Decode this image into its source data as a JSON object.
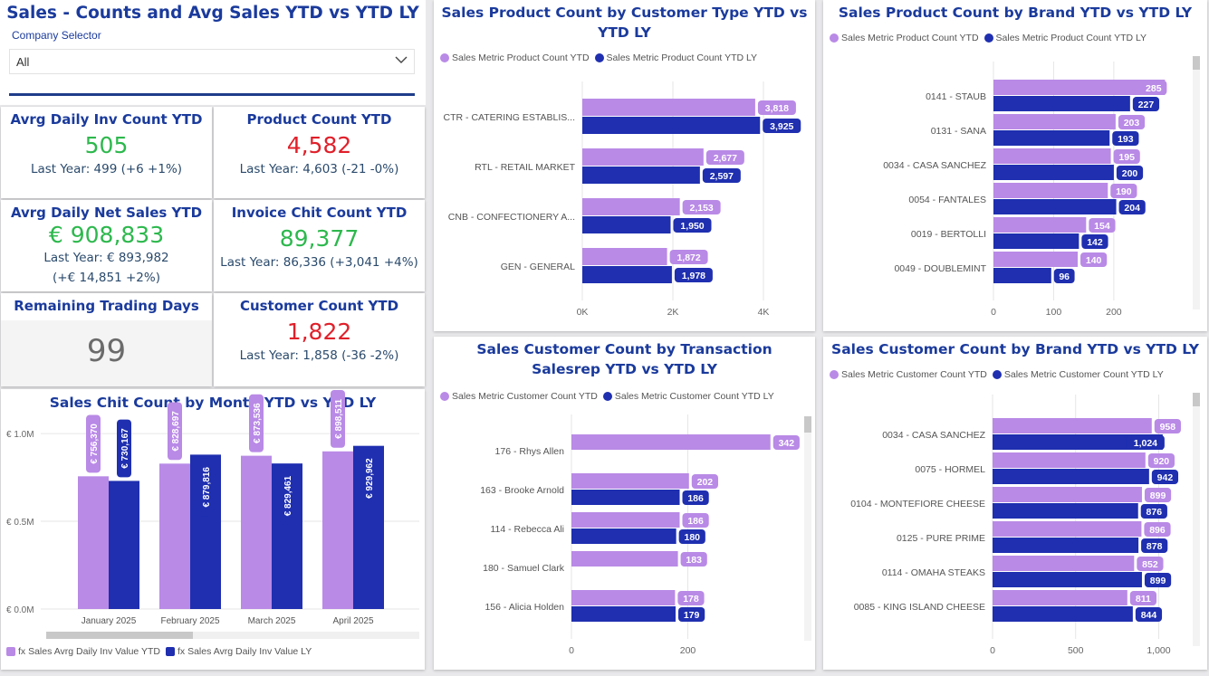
{
  "header": {
    "title": "Sales - Counts and Avg Sales YTD vs YTD LY",
    "selector_label": "Company Selector",
    "selector_value": "All"
  },
  "kpis": {
    "inv_count": {
      "title": "Avrg Daily Inv Count YTD",
      "value": "505",
      "sub": "Last Year: 499 (+6 +1%)"
    },
    "product_count": {
      "title": "Product Count YTD",
      "value": "4,582",
      "sub": "Last Year: 4,603 (-21 -0%)"
    },
    "net_sales": {
      "title": "Avrg Daily Net Sales YTD",
      "value": "€ 908,833",
      "sub": "Last Year: € 893,982",
      "sub2": "(+€ 14,851 +2%)"
    },
    "invoice_chit": {
      "title": "Invoice Chit Count YTD",
      "value": "89,377",
      "sub": "Last Year: 86,336 (+3,041 +4%)"
    },
    "remaining_days": {
      "title": "Remaining Trading Days",
      "value": "99"
    },
    "customer_count": {
      "title": "Customer Count YTD",
      "value": "1,822",
      "sub": "Last Year: 1,858 (-36 -2%)"
    }
  },
  "colors": {
    "ytd": "#b98ae6",
    "ly": "#1f2fb0",
    "green": "#2db84d",
    "red": "#e0202a",
    "title": "#1a3a9c"
  },
  "chart_data": [
    {
      "id": "month",
      "type": "bar",
      "title": "Sales Chit Count by Month YTD vs YTD LY",
      "categories": [
        "January 2025",
        "February 2025",
        "March 2025",
        "April 2025"
      ],
      "series": [
        {
          "name": "fx Sales Avrg Daily Inv Value YTD",
          "values": [
            756370,
            828697,
            873536,
            898511
          ],
          "labels": [
            "€ 756,370",
            "€ 828,697",
            "€ 873,536",
            "€ 898,511"
          ]
        },
        {
          "name": "fx Sales Avrg Daily Inv Value LY",
          "values": [
            730167,
            879816,
            829461,
            929962
          ],
          "labels": [
            "€ 730,167",
            "€ 879,816",
            "€ 829,461",
            "€ 929,962"
          ]
        }
      ],
      "yticks": [
        "€ 1.0M",
        "€ 0.5M",
        "€ 0.0M"
      ],
      "ylim": [
        0,
        1150000
      ]
    },
    {
      "id": "ctype",
      "type": "bar",
      "orientation": "horizontal",
      "title": "Sales Product Count by Customer Type YTD vs YTD LY",
      "categories": [
        "CTR - CATERING ESTABLIS...",
        "RTL - RETAIL MARKET",
        "CNB - CONFECTIONERY A...",
        "GEN - GENERAL"
      ],
      "series": [
        {
          "name": "Sales Metric Product Count YTD",
          "values": [
            3818,
            2677,
            2153,
            1872
          ],
          "labels": [
            "3,818",
            "2,677",
            "2,153",
            "1,872"
          ]
        },
        {
          "name": "Sales Metric Product Count YTD LY",
          "values": [
            3925,
            2597,
            1950,
            1978
          ],
          "labels": [
            "3,925",
            "2,597",
            "1,950",
            "1,978"
          ]
        }
      ],
      "xticks": [
        "0K",
        "2K",
        "4K"
      ],
      "xlim": [
        0,
        4800
      ]
    },
    {
      "id": "pbrand",
      "type": "bar",
      "orientation": "horizontal",
      "title": "Sales Product Count by Brand YTD vs YTD LY",
      "categories": [
        "0141 - STAUB",
        "0131 - SANA",
        "0034 - CASA SANCHEZ",
        "0054 - FANTALES",
        "0019 - BERTOLLI",
        "0049 - DOUBLEMINT"
      ],
      "series": [
        {
          "name": "Sales Metric Product Count YTD",
          "values": [
            285,
            203,
            195,
            190,
            154,
            140
          ],
          "labels": [
            "285",
            "203",
            "195",
            "190",
            "154",
            "140"
          ]
        },
        {
          "name": "Sales Metric Product Count YTD LY",
          "values": [
            227,
            193,
            200,
            204,
            142,
            96
          ],
          "labels": [
            "227",
            "193",
            "200",
            "204",
            "142",
            "96"
          ]
        }
      ],
      "xticks": [
        "0",
        "100",
        "200"
      ],
      "xlim": [
        0,
        310
      ]
    },
    {
      "id": "salesrep",
      "type": "bar",
      "orientation": "horizontal",
      "title": "Sales Customer Count by Transaction Salesrep YTD vs YTD LY",
      "categories": [
        "176 - Rhys Allen",
        "163 - Brooke Arnold",
        "114 - Rebecca Ali",
        "180 - Samuel Clark",
        "156 - Alicia Holden"
      ],
      "series": [
        {
          "name": "Sales Metric Customer Count YTD",
          "values": [
            342,
            202,
            186,
            183,
            178
          ],
          "labels": [
            "342",
            "202",
            "186",
            "183",
            "178"
          ]
        },
        {
          "name": "Sales Metric Customer Count YTD LY",
          "values": [
            null,
            186,
            180,
            null,
            179
          ],
          "labels": [
            "",
            "186",
            "180",
            "",
            "179"
          ]
        }
      ],
      "xticks": [
        "0",
        "200"
      ],
      "xlim": [
        0,
        400
      ]
    },
    {
      "id": "cbrand",
      "type": "bar",
      "orientation": "horizontal",
      "title": "Sales Customer Count by Brand YTD vs YTD LY",
      "categories": [
        "0034 - CASA SANCHEZ",
        "0075 - HORMEL",
        "0104 - MONTEFIORE CHEESE",
        "0125 - PURE PRIME",
        "0114 - OMAHA STEAKS",
        "0085 - KING ISLAND CHEESE"
      ],
      "series": [
        {
          "name": "Sales Metric Customer Count YTD",
          "values": [
            958,
            920,
            899,
            896,
            852,
            811
          ],
          "labels": [
            "958",
            "920",
            "899",
            "896",
            "852",
            "811"
          ]
        },
        {
          "name": "Sales Metric Customer Count YTD LY",
          "values": [
            1024,
            942,
            876,
            878,
            899,
            844
          ],
          "labels": [
            "1,024",
            "942",
            "876",
            "878",
            "899",
            "844"
          ]
        }
      ],
      "xticks": [
        "0",
        "500",
        "1,000"
      ],
      "xlim": [
        0,
        1150
      ]
    }
  ]
}
